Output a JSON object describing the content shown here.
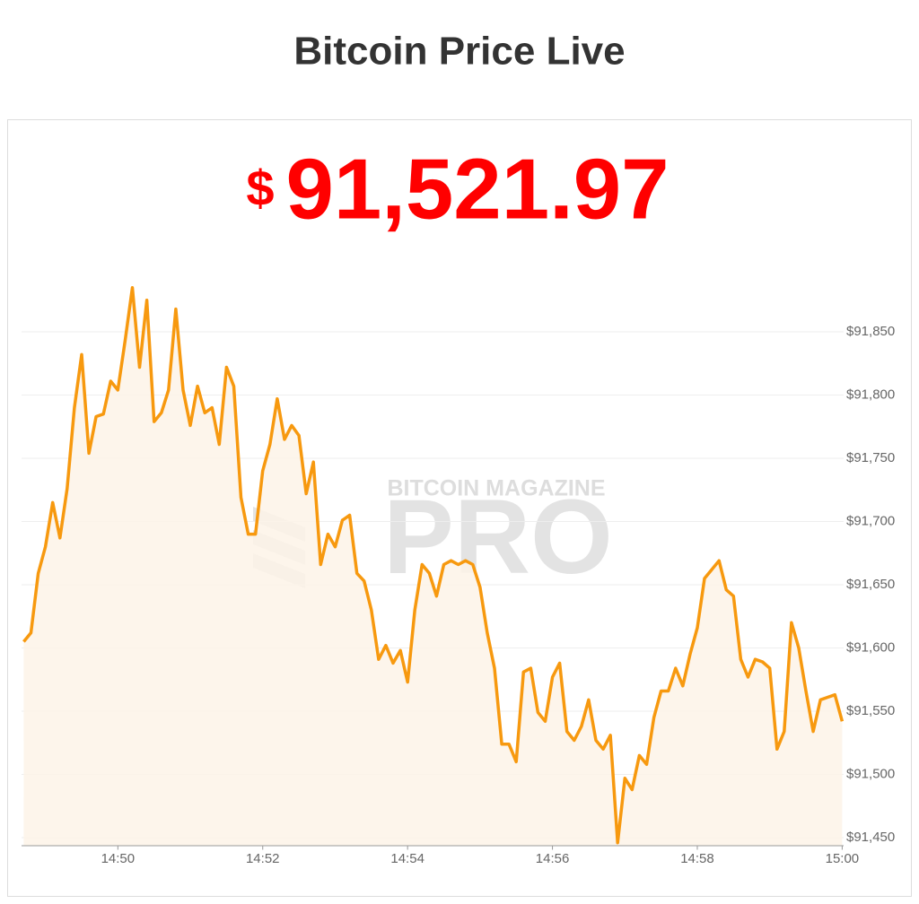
{
  "header": {
    "title": "Bitcoin Price Live"
  },
  "price": {
    "symbol": "$",
    "amount": "91,521.97"
  },
  "watermark": {
    "top": "BITCOIN MAGAZINE",
    "main": "PRO"
  },
  "chart_data": {
    "type": "area",
    "color": "#f7990f",
    "fill": "#fdf3e7",
    "grid": true,
    "x": [
      888.7,
      888.8,
      888.9,
      889.0,
      889.1,
      889.2,
      889.3,
      889.4,
      889.5,
      889.6,
      889.7,
      889.8,
      889.9,
      890.0,
      890.1,
      890.2,
      890.3,
      890.4,
      890.5,
      890.6,
      890.7,
      890.8,
      890.9,
      891.0,
      891.1,
      891.2,
      891.3,
      891.4,
      891.5,
      891.6,
      891.7,
      891.8,
      891.9,
      892.0,
      892.1,
      892.2,
      892.3,
      892.4,
      892.5,
      892.6,
      892.7,
      892.8,
      892.9,
      893.0,
      893.1,
      893.2,
      893.3,
      893.4,
      893.5,
      893.6,
      893.7,
      893.8,
      893.9,
      894.0,
      894.1,
      894.2,
      894.3,
      894.4,
      894.5,
      894.6,
      894.7,
      894.8,
      894.9,
      895.0,
      895.1,
      895.2,
      895.3,
      895.4,
      895.5,
      895.6,
      895.7,
      895.8,
      895.9,
      896.0,
      896.1,
      896.2,
      896.3,
      896.4,
      896.5,
      896.6,
      896.7,
      896.8,
      896.9,
      897.0,
      897.1,
      897.2,
      897.3,
      897.4,
      897.5,
      897.6,
      897.7,
      897.8,
      897.9,
      898.0,
      898.1,
      898.2,
      898.3,
      898.4,
      898.5,
      898.6,
      898.7,
      898.8,
      898.9,
      899.0,
      899.1,
      899.2,
      899.3,
      899.4,
      899.5,
      899.6,
      899.7,
      899.8,
      899.9,
      900.0
    ],
    "values": [
      91605,
      91612,
      91659,
      91680,
      91715,
      91687,
      91726,
      91790,
      91832,
      91754,
      91783,
      91785,
      91811,
      91804,
      91843,
      91885,
      91822,
      91875,
      91779,
      91786,
      91804,
      91868,
      91804,
      91776,
      91807,
      91786,
      91790,
      91761,
      91822,
      91807,
      91719,
      91690,
      91690,
      91740,
      91761,
      91797,
      91765,
      91776,
      91768,
      91722,
      91747,
      91666,
      91690,
      91680,
      91701,
      91705,
      91659,
      91653,
      91630,
      91591,
      91602,
      91588,
      91598,
      91573,
      91630,
      91666,
      91659,
      91641,
      91666,
      91669,
      91666,
      91669,
      91666,
      91648,
      91612,
      91584,
      91524,
      91524,
      91510,
      91581,
      91584,
      91549,
      91542,
      91577,
      91588,
      91534,
      91527,
      91538,
      91559,
      91527,
      91520,
      91531,
      91446,
      91497,
      91488,
      91515,
      91508,
      91545,
      91566,
      91566,
      91584,
      91570,
      91595,
      91616,
      91655,
      91662,
      91669,
      91646,
      91641,
      91591,
      91577,
      91591,
      91589,
      91584,
      91520,
      91534,
      91620,
      91600,
      91566,
      91534,
      91559,
      91561,
      91563,
      91542
    ],
    "xlim": [
      888.67,
      900.02
    ],
    "xticks": [
      {
        "value": 890,
        "label": "14:50"
      },
      {
        "value": 892,
        "label": "14:52"
      },
      {
        "value": 894,
        "label": "14:54"
      },
      {
        "value": 896,
        "label": "14:56"
      },
      {
        "value": 898,
        "label": "14:58"
      },
      {
        "value": 900,
        "label": "15:00"
      }
    ],
    "ylim": [
      91444,
      91900
    ],
    "yticks": [
      {
        "value": 91450,
        "label": "$91,450"
      },
      {
        "value": 91500,
        "label": "$91,500"
      },
      {
        "value": 91550,
        "label": "$91,550"
      },
      {
        "value": 91600,
        "label": "$91,600"
      },
      {
        "value": 91650,
        "label": "$91,650"
      },
      {
        "value": 91700,
        "label": "$91,700"
      },
      {
        "value": 91750,
        "label": "$91,750"
      },
      {
        "value": 91800,
        "label": "$91,800"
      },
      {
        "value": 91850,
        "label": "$91,850"
      }
    ]
  }
}
